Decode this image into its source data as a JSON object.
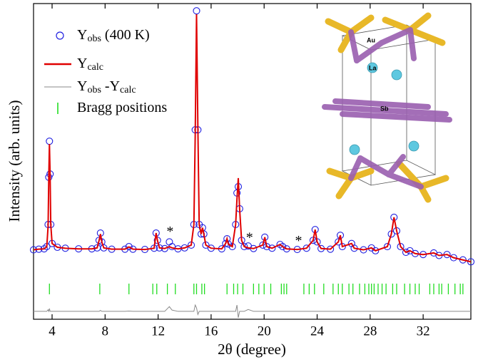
{
  "chart_data": {
    "type": "line",
    "xlabel": "2θ (degree)",
    "ylabel": "Intensity (arb. units)",
    "xlim": [
      2.6,
      35.6
    ],
    "ylim": [
      0,
      100
    ],
    "xticks": [
      4,
      8,
      12,
      16,
      20,
      24,
      28,
      32
    ],
    "legend": "upper left",
    "x": [
      2.6,
      3.0,
      3.4,
      3.6,
      3.7,
      3.75,
      3.8,
      3.85,
      3.9,
      4.0,
      4.4,
      5.0,
      6.0,
      7.0,
      7.4,
      7.55,
      7.65,
      7.75,
      7.9,
      8.5,
      9.5,
      9.8,
      10.1,
      11.0,
      11.7,
      11.85,
      11.95,
      12.1,
      12.5,
      12.85,
      13.05,
      13.5,
      14.0,
      14.5,
      14.7,
      14.8,
      14.9,
      15.0,
      15.1,
      15.25,
      15.35,
      15.45,
      15.6,
      16.0,
      16.8,
      17.1,
      17.2,
      17.3,
      17.6,
      17.85,
      17.95,
      18.05,
      18.15,
      18.3,
      18.5,
      18.8,
      19.2,
      19.9,
      20.05,
      20.2,
      20.6,
      21.2,
      21.4,
      21.7,
      22.5,
      23.2,
      23.7,
      23.85,
      24.0,
      24.3,
      25.0,
      25.6,
      25.75,
      25.9,
      26.6,
      26.8,
      27.5,
      28.1,
      28.4,
      29.3,
      29.6,
      29.8,
      30.0,
      30.3,
      30.7,
      31.0,
      31.4,
      32.0,
      32.8,
      33.2,
      33.8,
      34.3,
      35.0,
      35.6
    ],
    "series": [
      {
        "name": "Yobs (400 K)",
        "style": "circle",
        "color": "#1f1fe0",
        "values": [
          22,
          22.2,
          22.3,
          23,
          30,
          45,
          56.4,
          46,
          30,
          24,
          22.8,
          22.5,
          22.3,
          22.3,
          22.6,
          25,
          27.3,
          24.5,
          22.6,
          22.2,
          22.2,
          23,
          22.2,
          22.1,
          22.5,
          27.3,
          25,
          22.6,
          22.4,
          24.5,
          23,
          22.3,
          22.6,
          23.5,
          30,
          60,
          97.7,
          60,
          30,
          27,
          29,
          27,
          23.5,
          22.5,
          22.3,
          24,
          25.5,
          23.8,
          23,
          30,
          40,
          42,
          35,
          25,
          23,
          23.2,
          22.4,
          23.5,
          26,
          23,
          22.5,
          23.7,
          23,
          22.3,
          22.1,
          22.5,
          25,
          28.4,
          24.5,
          22.4,
          22.2,
          24.5,
          26.6,
          23,
          24,
          22.5,
          22,
          22.6,
          21.7,
          23,
          27,
          32.3,
          28,
          23,
          21.2,
          21.7,
          20.8,
          20.5,
          21,
          20.2,
          20.5,
          19.5,
          18.8,
          18.2
        ]
      },
      {
        "name": "Ycalc",
        "style": "line",
        "color": "#e00000",
        "values": [
          22,
          22.2,
          22.3,
          23,
          29.5,
          45,
          55.5,
          46,
          30,
          24,
          22.8,
          22.5,
          22.3,
          22.3,
          22.6,
          25,
          27,
          24.5,
          22.6,
          22.2,
          22.2,
          22.9,
          22.2,
          22.1,
          22.5,
          27.3,
          25,
          22.6,
          22.4,
          23,
          22.6,
          22.3,
          22.6,
          23.5,
          30,
          58,
          96.6,
          61,
          30,
          27,
          29,
          27,
          23.5,
          22.5,
          22.3,
          24,
          25.5,
          23.8,
          23,
          30,
          38,
          44.7,
          35,
          25,
          23,
          22.6,
          22.4,
          23.5,
          26,
          23,
          22.5,
          23.7,
          23,
          22.3,
          22.1,
          22.5,
          25,
          28.4,
          24.5,
          22.4,
          22.2,
          24.5,
          26.6,
          23,
          24,
          22.5,
          22,
          22.6,
          21.7,
          23,
          27,
          32.3,
          28,
          23,
          21.2,
          21.7,
          20.8,
          20.5,
          21,
          20.2,
          20.5,
          19.5,
          18.8,
          18.2
        ]
      },
      {
        "name": "Yobs -Ycalc",
        "style": "line",
        "color": "#8a8a8a",
        "values": [
          2.5,
          2.5,
          2.5,
          2.5,
          3,
          2.5,
          3.4,
          2.5,
          2.5,
          2.5,
          2.5,
          2.5,
          2.5,
          2.5,
          2.5,
          2.5,
          2.8,
          2.5,
          2.5,
          2.5,
          2.5,
          2.6,
          2.5,
          2.5,
          2.5,
          2.5,
          2.5,
          2.5,
          2.5,
          4,
          2.9,
          2.5,
          2.5,
          2.5,
          2.5,
          4.5,
          3.6,
          1.5,
          2.5,
          2.5,
          2.5,
          2.5,
          2.5,
          2.5,
          2.5,
          2.5,
          2.5,
          2.5,
          2.5,
          2.5,
          4.5,
          0.5,
          2.5,
          2.5,
          2.5,
          3.1,
          2.5,
          2.5,
          2.5,
          2.5,
          2.5,
          2.5,
          2.5,
          2.5,
          2.5,
          2.5,
          2.5,
          2.5,
          2.5,
          2.5,
          2.5,
          2.5,
          2.5,
          2.5,
          2.5,
          2.5,
          2.5,
          2.5,
          2.5,
          2.5,
          2.5,
          2.5,
          2.5,
          2.5,
          2.5,
          2.5,
          2.5,
          2.5,
          2.5,
          2.5,
          2.5,
          2.5,
          2.5,
          2.5
        ]
      },
      {
        "name": "Bragg positions",
        "style": "tick",
        "color": "#22dd22",
        "x": [
          3.8,
          7.6,
          9.8,
          11.6,
          11.9,
          12.7,
          13.3,
          14.7,
          14.9,
          15.3,
          15.5,
          17.2,
          17.7,
          18.0,
          18.4,
          19.2,
          19.6,
          20.0,
          20.5,
          21.3,
          21.5,
          21.7,
          23.0,
          23.4,
          23.8,
          24.5,
          25.2,
          25.6,
          25.9,
          26.4,
          26.7,
          27.2,
          27.6,
          27.9,
          28.1,
          28.3,
          28.6,
          28.9,
          29.2,
          29.7,
          30.0,
          30.6,
          31.0,
          31.4,
          31.7,
          32.5,
          32.8,
          33.2,
          33.4,
          33.9,
          34.4,
          34.8,
          35.0
        ]
      }
    ],
    "annotations": [
      {
        "text": "*",
        "x": 12.9,
        "y": 27.5
      },
      {
        "text": "*",
        "x": 18.9,
        "y": 25.5
      },
      {
        "text": "*",
        "x": 22.6,
        "y": 24.5
      }
    ],
    "inset_labels": [
      "Au",
      "La",
      "Sb"
    ]
  }
}
